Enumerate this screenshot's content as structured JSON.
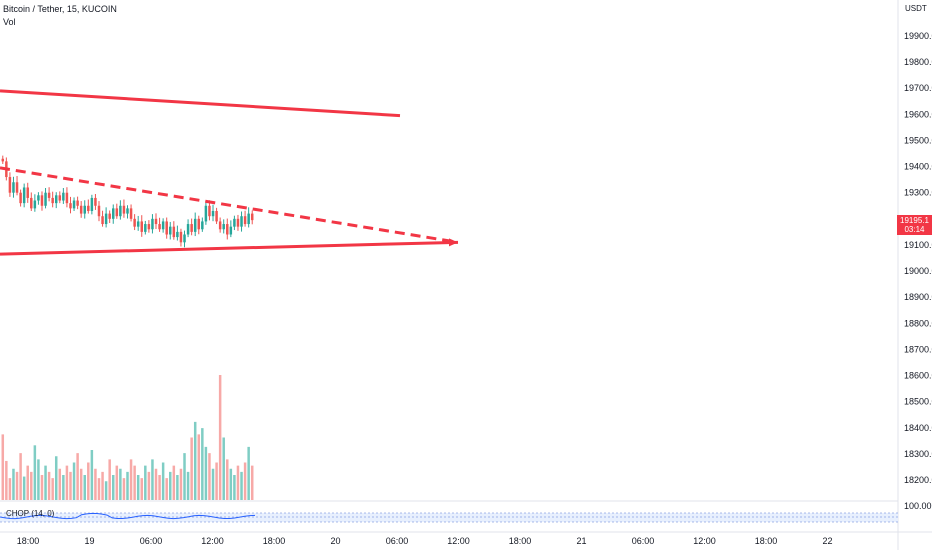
{
  "header": {
    "symbol": "Bitcoin / Tether, 15, KUCOIN",
    "volume_label": "Vol"
  },
  "currency": "USDT",
  "price_badge": {
    "price": "19195.1",
    "countdown": "03:14"
  },
  "indicator": {
    "label": "CHOP (14, 0)",
    "value_label": "100.00"
  },
  "colors": {
    "up": "#26a69a",
    "down": "#ef5350",
    "up_volume": "#7fcdc4",
    "down_volume": "#f7a9a7",
    "trendline": "#f23645",
    "chop": "#2962ff",
    "badge": "#f23645"
  },
  "chart_data": {
    "type": "candlestick",
    "symbol": "Bitcoin / Tether",
    "interval": "15",
    "exchange": "KUCOIN",
    "y_ticks": [
      "19900.0",
      "19800.0",
      "19700.0",
      "19600.0",
      "19500.0",
      "19400.0",
      "19300.0",
      "19200.0",
      "19100.0",
      "19000.0",
      "18900.0",
      "18800.0",
      "18700.0",
      "18600.0",
      "18500.0",
      "18400.0",
      "18300.0",
      "18200.0"
    ],
    "ylim": [
      18200,
      19900
    ],
    "x_ticks": [
      "18:00",
      "19",
      "06:00",
      "12:00",
      "18:00",
      "20",
      "06:00",
      "12:00",
      "18:00",
      "21",
      "06:00",
      "12:00",
      "18:00",
      "22"
    ],
    "last_price": 19195.1,
    "close_series": [
      19420,
      19360,
      19300,
      19340,
      19300,
      19260,
      19320,
      19280,
      19240,
      19270,
      19290,
      19250,
      19300,
      19280,
      19260,
      19290,
      19270,
      19300,
      19260,
      19240,
      19270,
      19250,
      19220,
      19250,
      19230,
      19280,
      19250,
      19210,
      19180,
      19220,
      19200,
      19240,
      19210,
      19250,
      19220,
      19240,
      19200,
      19170,
      19190,
      19150,
      19180,
      19160,
      19200,
      19180,
      19160,
      19190,
      19140,
      19170,
      19130,
      19150,
      19110,
      19140,
      19180,
      19150,
      19200,
      19160,
      19190,
      19250,
      19210,
      19230,
      19190,
      19160,
      19180,
      19140,
      19170,
      19200,
      19170,
      19210,
      19180,
      19220,
      19195
    ],
    "volume_series": [
      42,
      25,
      14,
      20,
      18,
      30,
      15,
      22,
      18,
      35,
      26,
      16,
      22,
      18,
      14,
      28,
      20,
      16,
      22,
      18,
      24,
      30,
      20,
      16,
      24,
      32,
      20,
      14,
      18,
      12,
      26,
      16,
      22,
      20,
      14,
      18,
      26,
      22,
      16,
      14,
      22,
      18,
      26,
      20,
      16,
      24,
      14,
      18,
      22,
      16,
      20,
      30,
      18,
      40,
      50,
      42,
      46,
      34,
      30,
      20,
      24,
      80,
      40,
      26,
      20,
      16,
      22,
      18,
      24,
      34,
      22
    ],
    "trendlines": [
      {
        "style": "solid",
        "from": [
          "17:00",
          19690
        ],
        "to": [
          "20 04:00",
          19595
        ]
      },
      {
        "style": "dashed",
        "from": [
          "17:00",
          19395
        ],
        "to": [
          "20 12:00",
          19110
        ]
      },
      {
        "style": "solid",
        "from": [
          "17:00",
          19065
        ],
        "to": [
          "20 12:00",
          19110
        ]
      }
    ]
  }
}
